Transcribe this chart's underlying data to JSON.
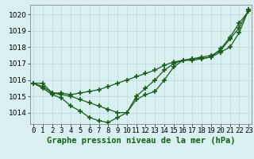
{
  "x": [
    0,
    1,
    2,
    3,
    4,
    5,
    6,
    7,
    8,
    9,
    10,
    11,
    12,
    13,
    14,
    15,
    16,
    17,
    18,
    19,
    20,
    21,
    22,
    23
  ],
  "line1": [
    1015.8,
    1015.8,
    1015.2,
    1015.2,
    1015.1,
    1015.2,
    1015.3,
    1015.4,
    1015.6,
    1015.8,
    1016.0,
    1016.2,
    1016.4,
    1016.6,
    1016.9,
    1017.1,
    1017.2,
    1017.3,
    1017.4,
    1017.5,
    1017.8,
    1018.5,
    1019.2,
    1020.3
  ],
  "line2": [
    1015.8,
    1015.6,
    1015.2,
    1015.1,
    1015.0,
    1014.8,
    1014.6,
    1014.4,
    1014.2,
    1014.0,
    1014.0,
    1015.0,
    1015.5,
    1016.0,
    1016.6,
    1017.0,
    1017.2,
    1017.2,
    1017.3,
    1017.4,
    1017.9,
    1018.6,
    1019.5,
    1020.2
  ],
  "line3": [
    1015.8,
    1015.5,
    1015.1,
    1014.9,
    1014.4,
    1014.1,
    1013.7,
    1013.5,
    1013.4,
    1013.7,
    1014.0,
    1014.8,
    1015.1,
    1015.3,
    1016.0,
    1016.8,
    1017.2,
    1017.3,
    1017.3,
    1017.4,
    1017.7,
    1018.0,
    1018.9,
    1020.3
  ],
  "bg_color": "#d8f0f0",
  "grid_color": "#b8d8d8",
  "line_color": "#1a5c1a",
  "ylim_min": 1013.3,
  "ylim_max": 1020.6,
  "yticks": [
    1014,
    1015,
    1016,
    1017,
    1018,
    1019,
    1020
  ],
  "xtick_labels": [
    "0",
    "1",
    "2",
    "3",
    "4",
    "5",
    "6",
    "7",
    "8",
    "9",
    "10",
    "11",
    "12",
    "13",
    "14",
    "15",
    "16",
    "17",
    "18",
    "19",
    "20",
    "21",
    "22",
    "23"
  ],
  "xlabel": "Graphe pression niveau de la mer (hPa)",
  "xlabel_fontsize": 7.5,
  "tick_fontsize": 6.5,
  "marker": "+",
  "markersize": 4.5,
  "linewidth": 0.9
}
